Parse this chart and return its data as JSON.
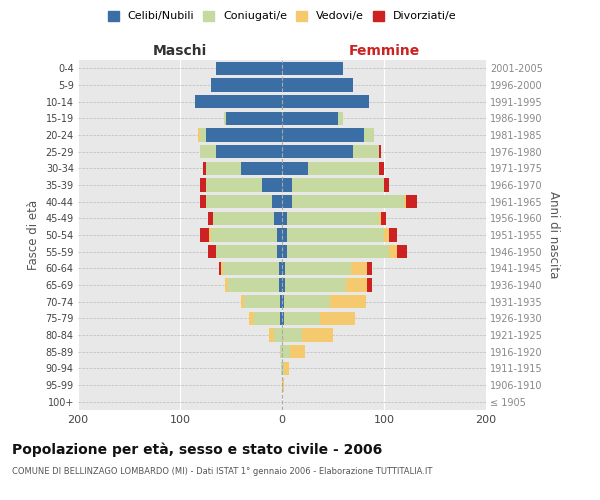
{
  "age_groups": [
    "100+",
    "95-99",
    "90-94",
    "85-89",
    "80-84",
    "75-79",
    "70-74",
    "65-69",
    "60-64",
    "55-59",
    "50-54",
    "45-49",
    "40-44",
    "35-39",
    "30-34",
    "25-29",
    "20-24",
    "15-19",
    "10-14",
    "5-9",
    "0-4"
  ],
  "birth_years": [
    "≤ 1905",
    "1906-1910",
    "1911-1915",
    "1916-1920",
    "1921-1925",
    "1926-1930",
    "1931-1935",
    "1936-1940",
    "1941-1945",
    "1946-1950",
    "1951-1955",
    "1956-1960",
    "1961-1965",
    "1966-1970",
    "1971-1975",
    "1976-1980",
    "1981-1985",
    "1986-1990",
    "1991-1995",
    "1996-2000",
    "2001-2005"
  ],
  "colors": {
    "celibi": "#3a6ea5",
    "coniugati": "#c5d9a0",
    "vedovi": "#f5c96e",
    "divorziati": "#cc2222"
  },
  "male_celibi": [
    0,
    0,
    0,
    0,
    0,
    2,
    2,
    3,
    3,
    5,
    5,
    8,
    10,
    20,
    40,
    65,
    75,
    55,
    85,
    70,
    65
  ],
  "male_coniugati": [
    0,
    0,
    1,
    2,
    8,
    25,
    35,
    50,
    55,
    60,
    65,
    60,
    65,
    55,
    35,
    15,
    5,
    2,
    0,
    0,
    0
  ],
  "male_vedovi": [
    0,
    0,
    0,
    0,
    5,
    5,
    3,
    3,
    2,
    0,
    2,
    0,
    0,
    0,
    0,
    0,
    2,
    0,
    0,
    0,
    0
  ],
  "male_divorziati": [
    0,
    0,
    0,
    0,
    0,
    0,
    0,
    0,
    2,
    8,
    8,
    5,
    5,
    5,
    2,
    0,
    0,
    0,
    0,
    0,
    0
  ],
  "female_nubili": [
    0,
    0,
    0,
    0,
    0,
    2,
    2,
    3,
    3,
    5,
    5,
    5,
    10,
    10,
    25,
    70,
    80,
    55,
    85,
    70,
    60
  ],
  "female_coniugate": [
    0,
    0,
    2,
    8,
    20,
    35,
    45,
    60,
    65,
    100,
    95,
    90,
    110,
    90,
    70,
    25,
    10,
    5,
    0,
    0,
    0
  ],
  "female_vedove": [
    0,
    2,
    5,
    15,
    30,
    35,
    35,
    20,
    15,
    8,
    5,
    2,
    2,
    0,
    0,
    0,
    0,
    0,
    0,
    0,
    0
  ],
  "female_divorziate": [
    0,
    0,
    0,
    0,
    0,
    0,
    0,
    5,
    5,
    10,
    8,
    5,
    10,
    5,
    5,
    2,
    0,
    0,
    0,
    0,
    0
  ],
  "title": "Popolazione per età, sesso e stato civile - 2006",
  "subtitle": "COMUNE DI BELLINZAGO LOMBARDO (MI) - Dati ISTAT 1° gennaio 2006 - Elaborazione TUTTITALIA.IT",
  "xlabel_left": "Maschi",
  "xlabel_right": "Femmine",
  "ylabel_left": "Fasce di età",
  "ylabel_right": "Anni di nascita",
  "legend_labels": [
    "Celibi/Nubili",
    "Coniugati/e",
    "Vedovi/e",
    "Divorziati/e"
  ],
  "xlim": 200
}
